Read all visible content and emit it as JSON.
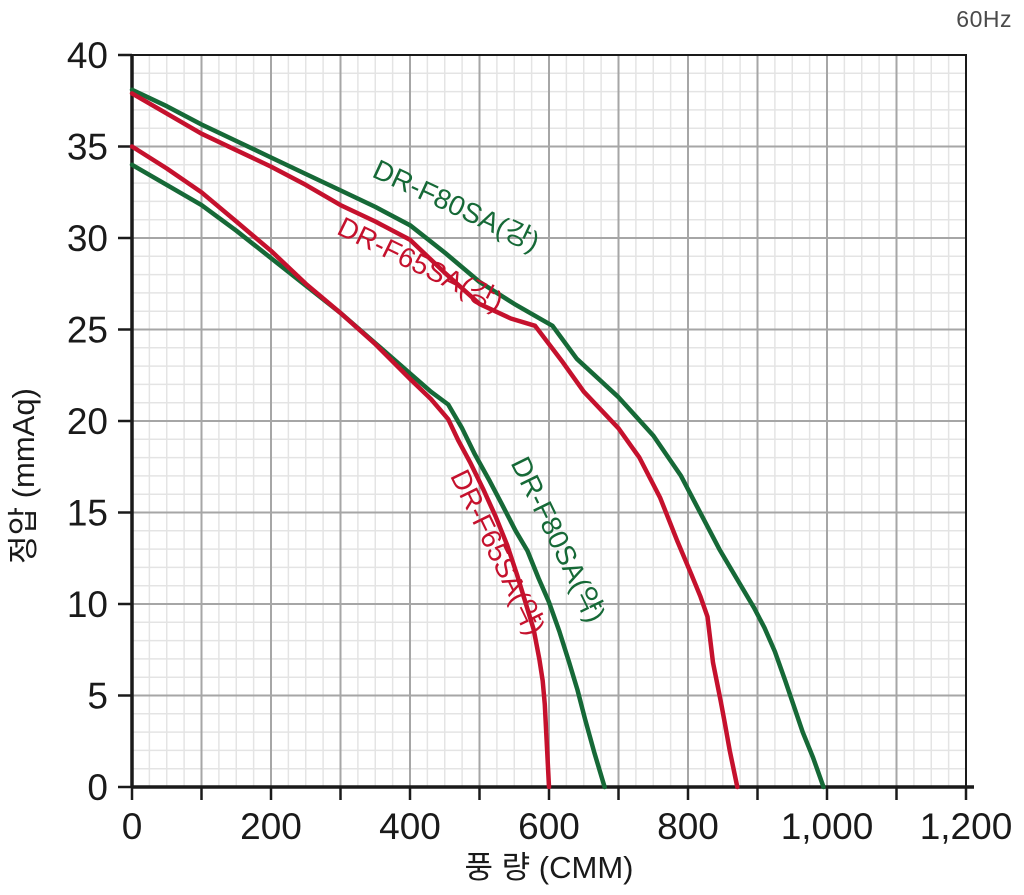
{
  "frequency_label": "60Hz",
  "chart_data": {
    "type": "line",
    "title": "",
    "xlabel": "풍 량 (CMM)",
    "ylabel": "정압 (mmAq)",
    "xlim": [
      0,
      1200
    ],
    "ylim": [
      0,
      40
    ],
    "grid": {
      "x_minor_step": 25,
      "y_minor_step": 1,
      "x_major_step": 100,
      "y_major_step": 5
    },
    "legend_position": "inline-labels",
    "x_tick_labels": [
      {
        "v": 0,
        "label": "0"
      },
      {
        "v": 200,
        "label": "200"
      },
      {
        "v": 400,
        "label": "400"
      },
      {
        "v": 600,
        "label": "600"
      },
      {
        "v": 800,
        "label": "800"
      },
      {
        "v": 1000,
        "label": "1,000"
      },
      {
        "v": 1200,
        "label": "1,200"
      }
    ],
    "y_tick_labels": [
      {
        "v": 0,
        "label": "0"
      },
      {
        "v": 5,
        "label": "5"
      },
      {
        "v": 10,
        "label": "10"
      },
      {
        "v": 15,
        "label": "15"
      },
      {
        "v": 20,
        "label": "20"
      },
      {
        "v": 25,
        "label": "25"
      },
      {
        "v": 30,
        "label": "30"
      },
      {
        "v": 35,
        "label": "35"
      },
      {
        "v": 40,
        "label": "40"
      }
    ],
    "colors": {
      "green": "#166937",
      "red": "#c5112d",
      "axis": "#1a1a1a",
      "grid_major": "#a6a6a6",
      "grid_minor": "#e4e4e4",
      "tick_text": "#1a1a1a",
      "freq_text": "#4a4a4a",
      "background": "#ffffff"
    },
    "series": [
      {
        "name": "DR-F80SA(강)",
        "color_key": "green",
        "points": [
          [
            0,
            38.1
          ],
          [
            50,
            37.2
          ],
          [
            100,
            36.2
          ],
          [
            150,
            35.3
          ],
          [
            200,
            34.4
          ],
          [
            250,
            33.5
          ],
          [
            300,
            32.6
          ],
          [
            350,
            31.7
          ],
          [
            400,
            30.7
          ],
          [
            450,
            29.2
          ],
          [
            500,
            27.6
          ],
          [
            550,
            26.4
          ],
          [
            605,
            25.2
          ],
          [
            640,
            23.4
          ],
          [
            700,
            21.3
          ],
          [
            750,
            19.2
          ],
          [
            790,
            17.0
          ],
          [
            845,
            13.0
          ],
          [
            870,
            11.4
          ],
          [
            895,
            9.8
          ],
          [
            910,
            8.7
          ],
          [
            925,
            7.4
          ],
          [
            940,
            5.8
          ],
          [
            965,
            3.0
          ],
          [
            980,
            1.6
          ],
          [
            995,
            0
          ]
        ]
      },
      {
        "name": "DR-F65SA(강)",
        "color_key": "red",
        "points": [
          [
            0,
            37.9
          ],
          [
            50,
            36.8
          ],
          [
            100,
            35.7
          ],
          [
            150,
            34.8
          ],
          [
            200,
            33.9
          ],
          [
            250,
            32.9
          ],
          [
            300,
            31.8
          ],
          [
            350,
            30.9
          ],
          [
            400,
            29.9
          ],
          [
            450,
            28.1
          ],
          [
            500,
            26.4
          ],
          [
            545,
            25.6
          ],
          [
            580,
            25.2
          ],
          [
            620,
            23.2
          ],
          [
            650,
            21.6
          ],
          [
            700,
            19.6
          ],
          [
            730,
            18.0
          ],
          [
            760,
            15.8
          ],
          [
            785,
            13.4
          ],
          [
            805,
            11.6
          ],
          [
            818,
            10.4
          ],
          [
            828,
            9.3
          ],
          [
            836,
            6.8
          ],
          [
            847,
            4.7
          ],
          [
            853,
            3.5
          ],
          [
            860,
            2.0
          ],
          [
            871,
            0
          ]
        ]
      },
      {
        "name": "DR-F80SA(약)",
        "color_key": "green",
        "points": [
          [
            0,
            34.0
          ],
          [
            50,
            32.9
          ],
          [
            100,
            31.8
          ],
          [
            150,
            30.4
          ],
          [
            200,
            28.9
          ],
          [
            250,
            27.4
          ],
          [
            300,
            25.9
          ],
          [
            350,
            24.25
          ],
          [
            400,
            22.6
          ],
          [
            430,
            21.6
          ],
          [
            455,
            20.9
          ],
          [
            475,
            19.6
          ],
          [
            493,
            18.2
          ],
          [
            515,
            16.7
          ],
          [
            533,
            15.4
          ],
          [
            552,
            14.0
          ],
          [
            569,
            12.9
          ],
          [
            585,
            11.4
          ],
          [
            600,
            10.1
          ],
          [
            615,
            8.5
          ],
          [
            629,
            6.8
          ],
          [
            641,
            5.3
          ],
          [
            652,
            3.7
          ],
          [
            665,
            1.9
          ],
          [
            680,
            0
          ]
        ]
      },
      {
        "name": "DR-F65SA(약)",
        "color_key": "red",
        "points": [
          [
            0,
            35.0
          ],
          [
            50,
            33.8
          ],
          [
            100,
            32.5
          ],
          [
            150,
            30.9
          ],
          [
            200,
            29.3
          ],
          [
            250,
            27.5
          ],
          [
            300,
            25.9
          ],
          [
            350,
            24.2
          ],
          [
            400,
            22.3
          ],
          [
            430,
            21.2
          ],
          [
            455,
            20.1
          ],
          [
            470,
            18.9
          ],
          [
            487,
            17.7
          ],
          [
            505,
            16.3
          ],
          [
            523,
            14.8
          ],
          [
            540,
            13.2
          ],
          [
            554,
            11.6
          ],
          [
            566,
            10.1
          ],
          [
            578,
            8.6
          ],
          [
            586,
            7.0
          ],
          [
            591,
            5.8
          ],
          [
            594,
            4.5
          ],
          [
            596,
            3.0
          ],
          [
            598,
            1.5
          ],
          [
            600,
            0
          ]
        ]
      }
    ],
    "curve_labels": [
      {
        "text": "DR-F80SA(강)",
        "color_key": "green",
        "x": 461,
        "y": 31.3,
        "rotation": 25
      },
      {
        "text": "DR-F65SA(강)",
        "color_key": "red",
        "x": 409,
        "y": 28.1,
        "rotation": 26
      },
      {
        "text": "DR-F80SA(약)",
        "color_key": "green",
        "x": 601,
        "y": 13.3,
        "rotation": 64
      },
      {
        "text": "DR-F65SA(약)",
        "color_key": "red",
        "x": 514,
        "y": 12.6,
        "rotation": 64
      }
    ]
  }
}
